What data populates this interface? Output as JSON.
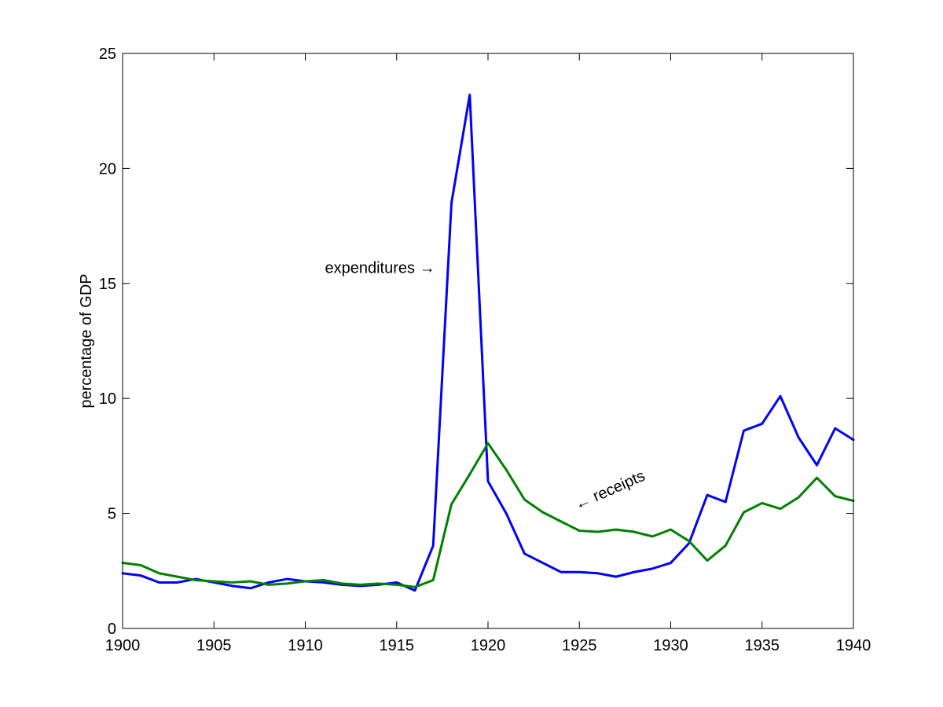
{
  "chart_data": {
    "type": "line",
    "title": "",
    "xlabel": "",
    "ylabel": "percentage of GDP",
    "xlim": [
      1900,
      1940
    ],
    "ylim": [
      0,
      25
    ],
    "xticks": [
      1900,
      1905,
      1910,
      1915,
      1920,
      1925,
      1930,
      1935,
      1940
    ],
    "yticks": [
      0,
      5,
      10,
      15,
      20,
      25
    ],
    "grid": false,
    "x": [
      1900,
      1901,
      1902,
      1903,
      1904,
      1905,
      1906,
      1907,
      1908,
      1909,
      1910,
      1911,
      1912,
      1913,
      1914,
      1915,
      1916,
      1917,
      1918,
      1919,
      1920,
      1921,
      1922,
      1923,
      1924,
      1925,
      1926,
      1927,
      1928,
      1929,
      1930,
      1931,
      1932,
      1933,
      1934,
      1935,
      1936,
      1937,
      1938,
      1939,
      1940
    ],
    "series": [
      {
        "color": "#0000ff",
        "values": [
          2.4,
          2.3,
          2.0,
          2.0,
          2.15,
          2.0,
          1.85,
          1.75,
          2.0,
          2.15,
          2.05,
          2.0,
          1.9,
          1.85,
          1.9,
          2.0,
          1.65,
          3.6,
          18.5,
          23.2,
          6.4,
          5.0,
          3.25,
          2.85,
          2.45,
          2.45,
          2.4,
          2.25,
          2.45,
          2.6,
          2.85,
          3.7,
          5.8,
          5.5,
          8.6,
          8.9,
          10.1,
          8.3,
          7.1,
          8.7,
          8.2
        ]
      },
      {
        "color": "#008000",
        "values": [
          2.85,
          2.75,
          2.4,
          2.25,
          2.1,
          2.05,
          2.0,
          2.05,
          1.9,
          1.95,
          2.05,
          2.1,
          1.95,
          1.9,
          1.95,
          1.9,
          1.8,
          2.1,
          5.4,
          6.7,
          8.05,
          6.9,
          5.6,
          5.05,
          4.65,
          4.25,
          4.2,
          4.3,
          4.2,
          4.0,
          4.3,
          3.8,
          2.95,
          3.6,
          5.05,
          5.45,
          5.2,
          5.7,
          6.55,
          5.75,
          5.55
        ]
      }
    ],
    "annotations": [
      {
        "text": "expenditures →",
        "x": 1917.1,
        "y": 15.45,
        "anchor": "end",
        "rotate": 0
      },
      {
        "text": "← receipts",
        "x": 1924.9,
        "y": 5.15,
        "anchor": "start",
        "rotate": -24
      }
    ]
  }
}
